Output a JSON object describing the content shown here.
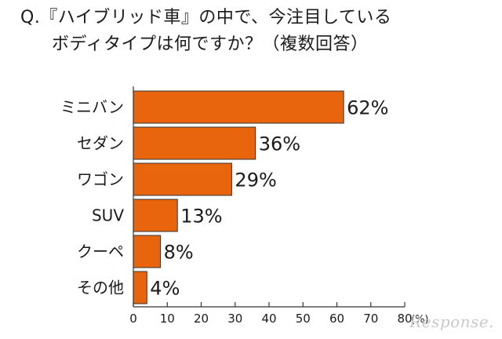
{
  "question": {
    "line1": "Q.『ハイブリッド車』の中で、今注目している",
    "line2": "ボディタイプは何ですか？（複数回答）"
  },
  "chart_data": {
    "type": "bar",
    "orientation": "horizontal",
    "categories": [
      "ミニバン",
      "セダン",
      "ワゴン",
      "SUV",
      "クーペ",
      "その他"
    ],
    "values": [
      62,
      36,
      29,
      13,
      8,
      4
    ],
    "value_suffix": "%",
    "xlim": [
      0,
      80
    ],
    "xticks": [
      0,
      10,
      20,
      30,
      40,
      50,
      60,
      70,
      80
    ],
    "xlabel": "(%)",
    "bar_color": "#e8650d",
    "bar_stroke": "#333333"
  },
  "watermark": "Response."
}
